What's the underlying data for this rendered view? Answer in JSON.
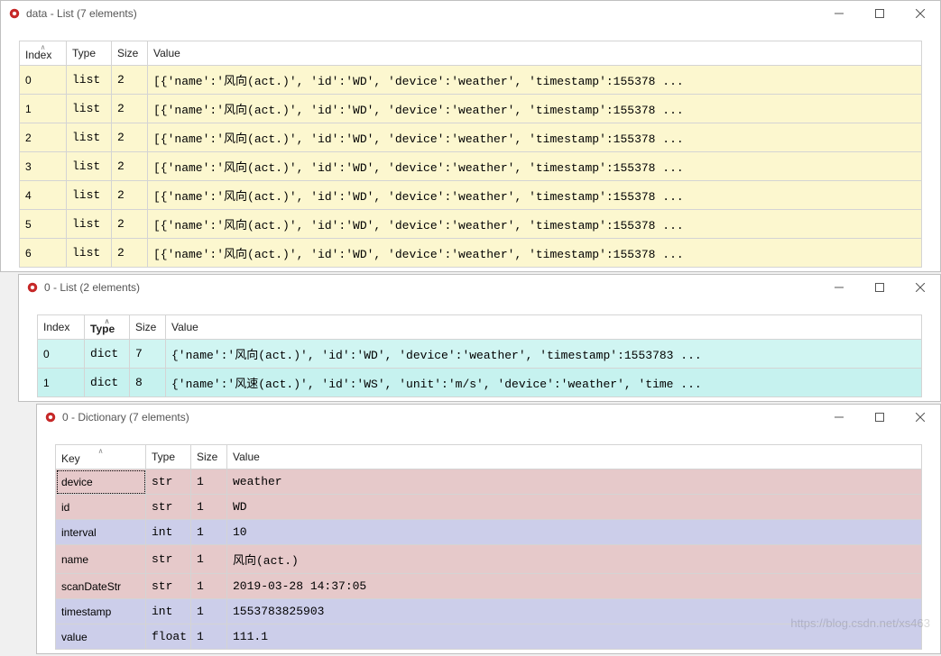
{
  "window1": {
    "title": "data - List (7 elements)",
    "columns": {
      "index": "Index",
      "type": "Type",
      "size": "Size",
      "value": "Value"
    },
    "sort_col": "index",
    "row_color": "#fcf7cf",
    "rows": [
      {
        "index": "0",
        "type": "list",
        "size": "2",
        "value": "[{'name':'风向(act.)', 'id':'WD', 'device':'weather', 'timestamp':155378 ..."
      },
      {
        "index": "1",
        "type": "list",
        "size": "2",
        "value": "[{'name':'风向(act.)', 'id':'WD', 'device':'weather', 'timestamp':155378 ..."
      },
      {
        "index": "2",
        "type": "list",
        "size": "2",
        "value": "[{'name':'风向(act.)', 'id':'WD', 'device':'weather', 'timestamp':155378 ..."
      },
      {
        "index": "3",
        "type": "list",
        "size": "2",
        "value": "[{'name':'风向(act.)', 'id':'WD', 'device':'weather', 'timestamp':155378 ..."
      },
      {
        "index": "4",
        "type": "list",
        "size": "2",
        "value": "[{'name':'风向(act.)', 'id':'WD', 'device':'weather', 'timestamp':155378 ..."
      },
      {
        "index": "5",
        "type": "list",
        "size": "2",
        "value": "[{'name':'风向(act.)', 'id':'WD', 'device':'weather', 'timestamp':155378 ..."
      },
      {
        "index": "6",
        "type": "list",
        "size": "2",
        "value": "[{'name':'风向(act.)', 'id':'WD', 'device':'weather', 'timestamp':155378 ..."
      }
    ]
  },
  "window2": {
    "title": "0 - List (2 elements)",
    "columns": {
      "index": "Index",
      "type": "Type",
      "size": "Size",
      "value": "Value"
    },
    "sort_col": "type",
    "row_color": "#d0f5f2",
    "rows": [
      {
        "index": "0",
        "type": "dict",
        "size": "7",
        "value": "{'name':'风向(act.)', 'id':'WD', 'device':'weather', 'timestamp':1553783 ..."
      },
      {
        "index": "1",
        "type": "dict",
        "size": "8",
        "value": "{'name':'风速(act.)', 'id':'WS', 'unit':'m/s', 'device':'weather', 'time ..."
      }
    ]
  },
  "window3": {
    "title": "0 - Dictionary (7 elements)",
    "columns": {
      "key": "Key",
      "type": "Type",
      "size": "Size",
      "value": "Value"
    },
    "sort_col": "key",
    "row_colors": {
      "str": "#e6c9ca",
      "int": "#ccceea",
      "float": "#ccceea"
    },
    "rows": [
      {
        "key": "device",
        "type": "str",
        "size": "1",
        "value": "weather",
        "selected": true
      },
      {
        "key": "id",
        "type": "str",
        "size": "1",
        "value": "WD"
      },
      {
        "key": "interval",
        "type": "int",
        "size": "1",
        "value": "10"
      },
      {
        "key": "name",
        "type": "str",
        "size": "1",
        "value": "风向(act.)"
      },
      {
        "key": "scanDateStr",
        "type": "str",
        "size": "1",
        "value": "2019-03-28 14:37:05"
      },
      {
        "key": "timestamp",
        "type": "int",
        "size": "1",
        "value": "1553783825903"
      },
      {
        "key": "value",
        "type": "float",
        "size": "1",
        "value": "111.1"
      }
    ]
  },
  "watermark": "https://blog.csdn.net/xs463"
}
